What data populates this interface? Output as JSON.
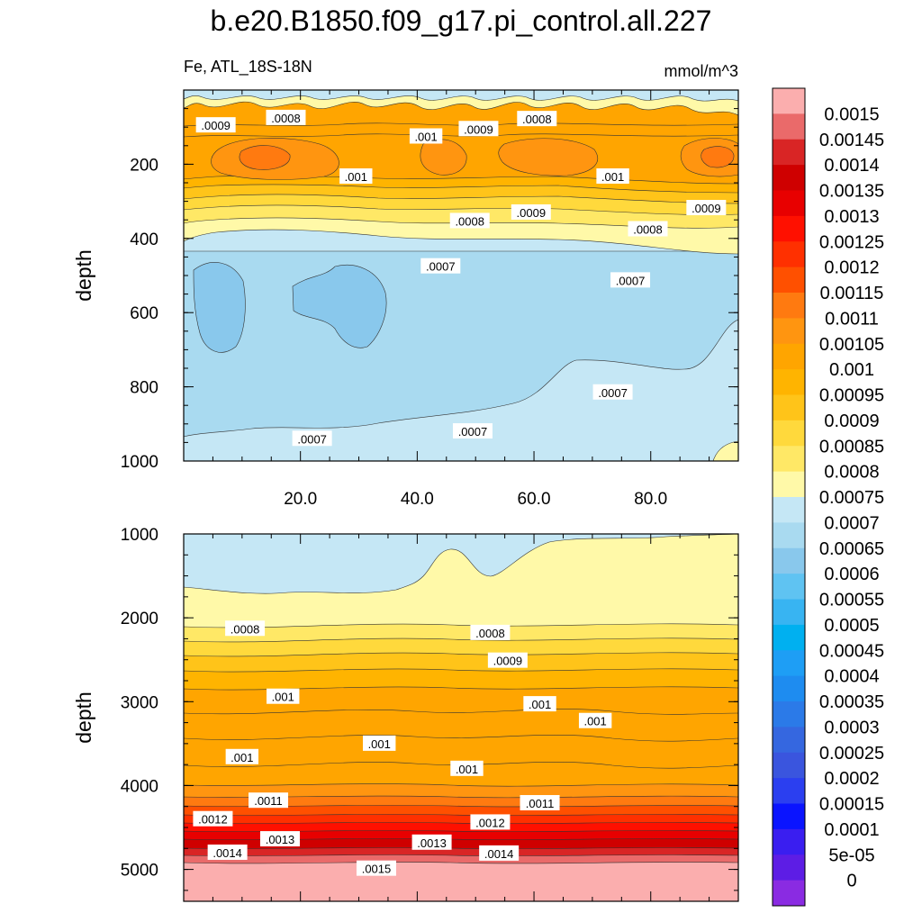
{
  "chart_data": {
    "type": "heatmap",
    "title": "b.e20.B1850.f09_g17.pi_control.all.227",
    "variable_label": "Fe, ATL_18S-18N",
    "units_label": "mmol/m^3",
    "colorbar": {
      "levels": [
        "0.0015",
        "0.00145",
        "0.0014",
        "0.00135",
        "0.0013",
        "0.00125",
        "0.0012",
        "0.00115",
        "0.0011",
        "0.00105",
        "0.001",
        "0.00095",
        "0.0009",
        "0.00085",
        "0.0008",
        "0.00075",
        "0.0007",
        "0.00065",
        "0.0006",
        "0.00055",
        "0.0005",
        "0.00045",
        "0.0004",
        "0.00035",
        "0.0003",
        "0.00025",
        "0.0002",
        "0.00015",
        "0.0001",
        "5e-05",
        "0"
      ],
      "colors": [
        "#fbaeae",
        "#ea6a6a",
        "#d92525",
        "#cf0000",
        "#e80000",
        "#ff1000",
        "#ff3000",
        "#ff5000",
        "#ff7a10",
        "#ff9510",
        "#ffa500",
        "#ffb400",
        "#ffc419",
        "#ffd93c",
        "#ffe866",
        "#fff9a8",
        "#c5e7f5",
        "#a9daf0",
        "#89c8ec",
        "#5fc3f2",
        "#38b4f2",
        "#00b0f0",
        "#1e9ef5",
        "#1e8cf0",
        "#2b7ae8",
        "#3567e0",
        "#3a55de",
        "#2b3ff0",
        "#0a14ff",
        "#3a1ef0",
        "#5d1de5",
        "#8a2be2"
      ]
    },
    "panels": [
      {
        "name": "upper",
        "ylabel": "depth",
        "ylim": [
          0,
          1000
        ],
        "yaxis": "reversed",
        "xlim": [
          0,
          95
        ],
        "yticks": [
          "200",
          "400",
          "600",
          "800",
          "1000"
        ],
        "xticks": [
          "20.0",
          "40.0",
          "60.0",
          "80.0"
        ],
        "contour_labels": [
          {
            "text": ".0009",
            "x": 5.5,
            "depth": 95
          },
          {
            "text": ".0008",
            "x": 17.5,
            "depth": 75
          },
          {
            "text": ".001",
            "x": 41.5,
            "depth": 125
          },
          {
            "text": ".0009",
            "x": 50.5,
            "depth": 105
          },
          {
            "text": ".0008",
            "x": 60.5,
            "depth": 78
          },
          {
            "text": ".001",
            "x": 29.5,
            "depth": 233
          },
          {
            "text": ".001",
            "x": 73.5,
            "depth": 233
          },
          {
            "text": ".0009",
            "x": 59.5,
            "depth": 330
          },
          {
            "text": ".0008",
            "x": 49,
            "depth": 353
          },
          {
            "text": ".0008",
            "x": 79.5,
            "depth": 375
          },
          {
            "text": ".0009",
            "x": 89.5,
            "depth": 318
          },
          {
            "text": ".0007",
            "x": 44,
            "depth": 475
          },
          {
            "text": ".0007",
            "x": 76.5,
            "depth": 513
          },
          {
            "text": ".0007",
            "x": 49.5,
            "depth": 920
          },
          {
            "text": ".0007",
            "x": 73.5,
            "depth": 815
          },
          {
            "text": ".0007",
            "x": 22,
            "depth": 940
          }
        ]
      },
      {
        "name": "lower",
        "ylabel": "depth",
        "ylim": [
          1000,
          5380
        ],
        "yaxis": "reversed",
        "xlim": [
          0,
          95
        ],
        "yticks": [
          "1000",
          "2000",
          "3000",
          "4000",
          "5000"
        ],
        "contour_labels": [
          {
            "text": ".0008",
            "x": 10.5,
            "depth": 2130
          },
          {
            "text": ".0008",
            "x": 52.5,
            "depth": 2180
          },
          {
            "text": ".0009",
            "x": 55.5,
            "depth": 2510
          },
          {
            "text": ".001",
            "x": 17,
            "depth": 2940
          },
          {
            "text": ".001",
            "x": 61,
            "depth": 3030
          },
          {
            "text": ".001",
            "x": 70.5,
            "depth": 3230
          },
          {
            "text": ".001",
            "x": 33.5,
            "depth": 3500
          },
          {
            "text": ".001",
            "x": 10,
            "depth": 3660
          },
          {
            "text": ".001",
            "x": 48.5,
            "depth": 3800
          },
          {
            "text": ".0011",
            "x": 14.5,
            "depth": 4180
          },
          {
            "text": ".0011",
            "x": 61,
            "depth": 4210
          },
          {
            "text": ".0012",
            "x": 5,
            "depth": 4400
          },
          {
            "text": ".0012",
            "x": 52.5,
            "depth": 4440
          },
          {
            "text": ".0013",
            "x": 16.5,
            "depth": 4640
          },
          {
            "text": ".0013",
            "x": 42.5,
            "depth": 4680
          },
          {
            "text": ".0014",
            "x": 7.5,
            "depth": 4800
          },
          {
            "text": ".0014",
            "x": 54,
            "depth": 4810
          },
          {
            "text": ".0015",
            "x": 33,
            "depth": 4990
          }
        ]
      }
    ]
  }
}
